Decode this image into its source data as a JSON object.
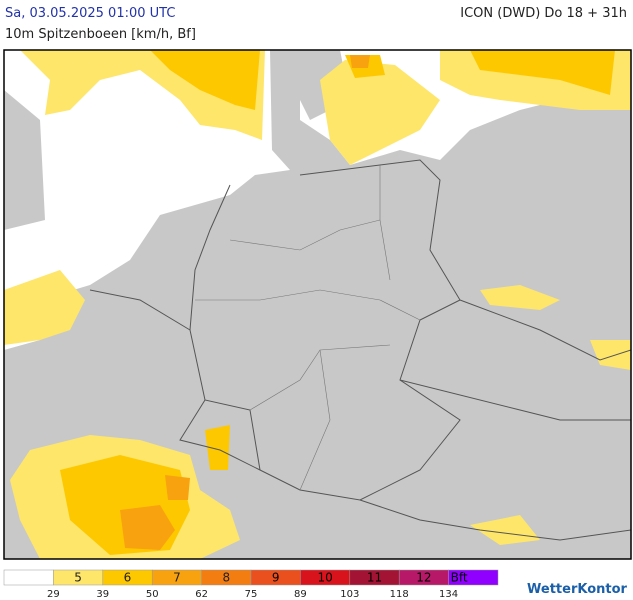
{
  "header": {
    "time": "Sa, 03.05.2025 01:00 UTC",
    "model": "ICON (DWD) Do 18 + 31h",
    "parameter": "10m Spitzenboeen [km/h, Bf]"
  },
  "legend": {
    "classes": [
      {
        "label": null,
        "color": "#ffffff"
      },
      {
        "label": "5",
        "color": "#fee66a"
      },
      {
        "label": "6",
        "color": "#fdc800"
      },
      {
        "label": "7",
        "color": "#f9a20f"
      },
      {
        "label": "8",
        "color": "#f37d10"
      },
      {
        "label": "9",
        "color": "#e9501e"
      },
      {
        "label": "10",
        "color": "#d9131c"
      },
      {
        "label": "11",
        "color": "#a31333"
      },
      {
        "label": "12",
        "color": "#b81868"
      },
      {
        "label": "Bft",
        "color": "#9000ff"
      }
    ],
    "boundaries": [
      29,
      39,
      50,
      62,
      75,
      89,
      103,
      118,
      134
    ]
  },
  "logo": "WetterKontor"
}
